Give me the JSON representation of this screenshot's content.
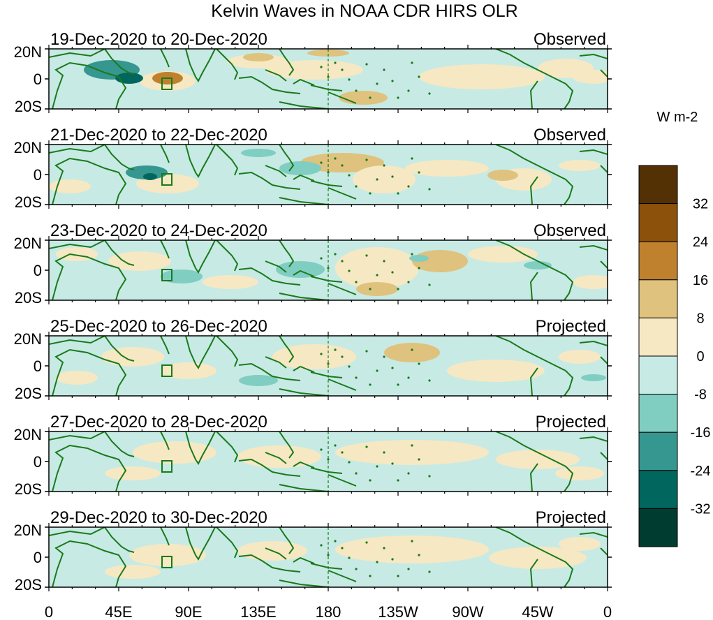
{
  "title": "Kelvin Waves in NOAA CDR HIRS OLR",
  "units": "W m-2",
  "lat_labels": [
    "20N",
    "0",
    "20S"
  ],
  "lon_labels": [
    "0",
    "45E",
    "90E",
    "135E",
    "180",
    "135W",
    "90W",
    "45W",
    "0"
  ],
  "panels": [
    {
      "dates": "19-Dec-2020 to 20-Dec-2020",
      "status": "Observed"
    },
    {
      "dates": "21-Dec-2020 to 22-Dec-2020",
      "status": "Observed"
    },
    {
      "dates": "23-Dec-2020 to 24-Dec-2020",
      "status": "Observed"
    },
    {
      "dates": "25-Dec-2020 to 26-Dec-2020",
      "status": "Projected"
    },
    {
      "dates": "27-Dec-2020 to 28-Dec-2020",
      "status": "Projected"
    },
    {
      "dates": "29-Dec-2020 to 30-Dec-2020",
      "status": "Projected"
    }
  ],
  "colorbar": {
    "labels": [
      "32",
      "24",
      "16",
      "8",
      "0",
      "-8",
      "-16",
      "-24",
      "-32"
    ],
    "colors": [
      "#543005",
      "#8c510a",
      "#bf812d",
      "#dfc27d",
      "#f6e8c3",
      "#c7eae5",
      "#80cdc1",
      "#35978f",
      "#01665e",
      "#003c30"
    ]
  },
  "colors": {
    "land_outline": "#1a7a1a",
    "background_fill": "#c7eae5"
  }
}
